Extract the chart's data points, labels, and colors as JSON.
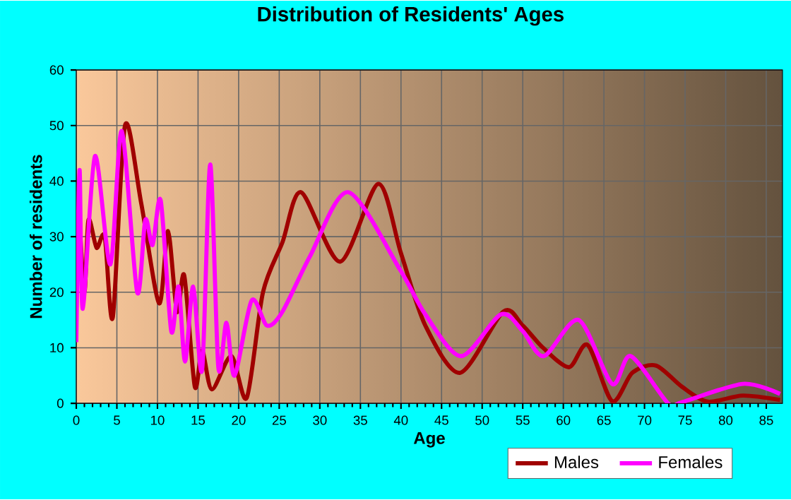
{
  "chart_data": {
    "type": "line",
    "title": "Distribution of Residents' Ages",
    "xlabel": "Age",
    "ylabel": "Number of residents",
    "xlim": [
      0,
      87
    ],
    "xticks": [
      0,
      5,
      10,
      15,
      20,
      25,
      30,
      35,
      40,
      45,
      50,
      55,
      60,
      65,
      70,
      75,
      80,
      85
    ],
    "ylim": [
      0,
      60
    ],
    "yticks": [
      0,
      10,
      20,
      30,
      40,
      50,
      60
    ],
    "grid": true,
    "legend": "bottom",
    "marker": "none",
    "line_style": "solid",
    "series": [
      {
        "name": "Males",
        "color": "#a00000",
        "x": [
          0,
          0.3,
          1,
          1.5,
          2.5,
          3.5,
          4.5,
          6,
          8,
          10.2,
          11.3,
          12.4,
          13.3,
          14.6,
          15.5,
          16.7,
          19.1,
          21,
          23,
          25.4,
          27.7,
          32.5,
          37.2,
          40,
          43,
          47.3,
          52.6,
          55,
          57.5,
          60.7,
          63,
          66,
          68.5,
          71.4,
          74.6,
          77.8,
          82.1,
          86.7
        ],
        "values": [
          16,
          33,
          20,
          33,
          28,
          30,
          15.5,
          50,
          36,
          18,
          31,
          16.5,
          23,
          3,
          9.5,
          2.5,
          8.5,
          1,
          20,
          29,
          38,
          25.5,
          39.5,
          27,
          14,
          5.5,
          16.5,
          14,
          10,
          6.5,
          10.5,
          0.4,
          5.5,
          6.8,
          3,
          0.3,
          1.4,
          0.6
        ]
      },
      {
        "name": "Females",
        "color": "#ff00ff",
        "x": [
          0,
          0.4,
          0.8,
          2.3,
          4.2,
          5.6,
          7.5,
          8.5,
          9.4,
          10.4,
          11.7,
          12.6,
          13.4,
          14.4,
          15.5,
          16.5,
          17.5,
          18.5,
          19.5,
          21.6,
          23.5,
          25.4,
          28.8,
          33.5,
          39.9,
          43,
          47.4,
          52.3,
          55,
          57.6,
          61.9,
          66,
          68.3,
          72.9,
          74.6,
          82.1,
          86.7
        ],
        "values": [
          11,
          42,
          17,
          44.5,
          25,
          49,
          20,
          33,
          28.5,
          36.5,
          13,
          21,
          7.5,
          21,
          6,
          43,
          6.5,
          14.5,
          5,
          18.5,
          14,
          16.5,
          26.5,
          38,
          24,
          16,
          8.5,
          16,
          13,
          8.5,
          15,
          3.5,
          8.5,
          0,
          0.2,
          3.5,
          1.7
        ]
      }
    ]
  }
}
